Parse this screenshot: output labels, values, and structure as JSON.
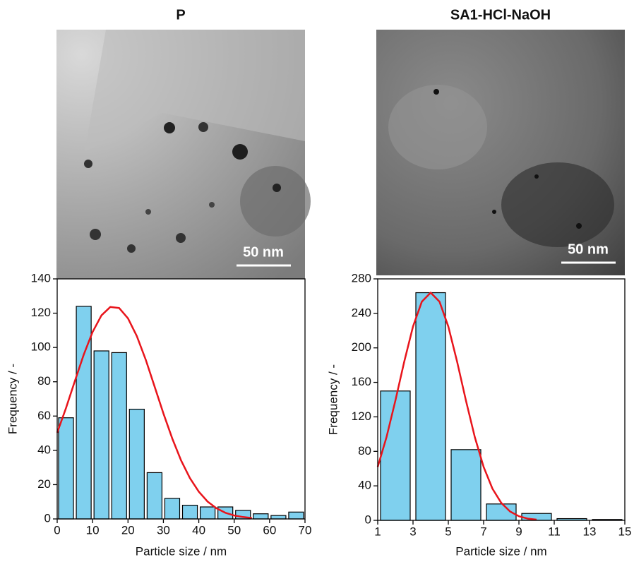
{
  "chart_data": [
    {
      "type": "histogram",
      "title": "P",
      "scale_bar": "50 nm",
      "xlabel": "Particle size / nm",
      "ylabel": "Frequency / -",
      "bins": [
        0,
        5,
        10,
        15,
        20,
        25,
        30,
        35,
        40,
        45,
        50,
        55,
        60,
        65,
        70
      ],
      "values": [
        59,
        124,
        98,
        97,
        64,
        27,
        12,
        8,
        7,
        7,
        5,
        3,
        2,
        4
      ],
      "color": "#7fd0ee",
      "fit": {
        "color": "#e8141b",
        "x": [
          0,
          2.5,
          5,
          7.5,
          10,
          12.5,
          15,
          17.5,
          20,
          22.5,
          25,
          27.5,
          30,
          32.5,
          35,
          37.5,
          40,
          42.5,
          45,
          47.5,
          50,
          52.5,
          55
        ],
        "values": [
          50.3,
          64.7,
          80.5,
          95.8,
          109,
          118.7,
          123.6,
          123,
          117,
          106.6,
          92.9,
          77.3,
          61.6,
          46.9,
          34.1,
          23.8,
          15.9,
          10.1,
          6.2,
          3.6,
          2.0,
          1.1,
          0.5
        ]
      },
      "xlim": [
        0,
        70
      ],
      "xticks": [
        0,
        10,
        20,
        30,
        40,
        50,
        60,
        70
      ],
      "ylim": [
        0,
        140
      ],
      "yticks": [
        0,
        20,
        40,
        60,
        80,
        100,
        120,
        140
      ]
    },
    {
      "type": "histogram",
      "title": "SA1-HCl-NaOH",
      "scale_bar": "50 nm",
      "xlabel": "Particle size / nm",
      "ylabel": "Frequency / -",
      "bins": [
        1,
        3,
        5,
        7,
        9,
        11,
        13,
        15
      ],
      "values": [
        150,
        264,
        82,
        19,
        8,
        2,
        1
      ],
      "color": "#7fd0ee",
      "fit": {
        "color": "#e8141b",
        "x": [
          1,
          1.5,
          2,
          2.5,
          3,
          3.5,
          4,
          4.5,
          5,
          5.5,
          6,
          6.5,
          7,
          7.5,
          8,
          8.5,
          9,
          9.5,
          10
        ],
        "values": [
          62,
          96.6,
          138.8,
          183.8,
          224.8,
          253.6,
          264,
          253.6,
          224.8,
          183.8,
          138.8,
          96.6,
          62,
          36.8,
          20.2,
          10.2,
          4.75,
          2.0,
          0.8
        ]
      },
      "xlim": [
        1,
        15
      ],
      "xticks": [
        1,
        3,
        5,
        7,
        9,
        11,
        13,
        15
      ],
      "ylim": [
        0,
        280
      ],
      "yticks": [
        0,
        40,
        80,
        120,
        160,
        200,
        240,
        280
      ]
    }
  ]
}
